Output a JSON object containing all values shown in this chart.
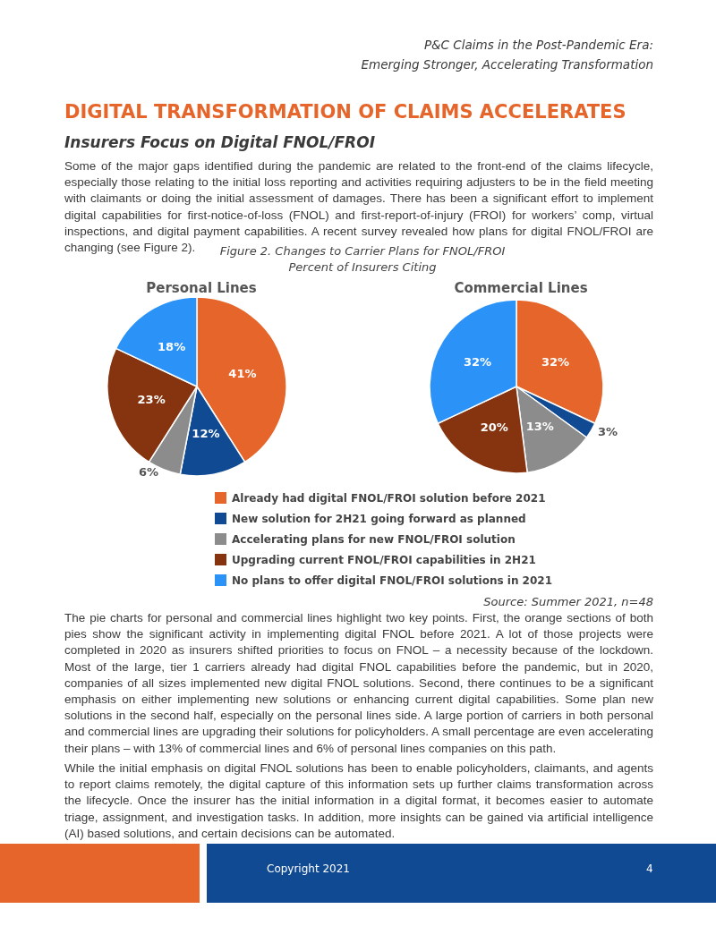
{
  "chart_data": [
    {
      "type": "pie",
      "title": "Figure 2. Changes to Carrier Plans for FNOL/FROI",
      "subtitle": "Percent of Insurers Citing",
      "categories": [
        "Already had digital FNOL/FROI solution before 2021",
        "New solution for 2H21 going forward as planned",
        "Accelerating plans for new FNOL/FROI solution",
        "Upgrading current FNOL/FROI capabilities in 2H21",
        "No plans to offer digital FNOL/FROI solutions in 2021"
      ],
      "colors": [
        "#e5652a",
        "#0f4a92",
        "#8c8c8c",
        "#86340f",
        "#2b93f8"
      ],
      "legend": "bottom",
      "series": [
        {
          "name": "Personal Lines",
          "values": [
            41,
            12,
            6,
            23,
            18
          ],
          "value_labels": [
            "41%",
            "12%",
            "6%",
            "23%",
            "18%"
          ]
        },
        {
          "name": "Commercial Lines",
          "values": [
            32,
            3,
            13,
            20,
            32
          ],
          "value_labels": [
            "32%",
            "3%",
            "13%",
            "20%",
            "32%"
          ]
        }
      ]
    },
    {
      "type": "other",
      "title": "DIGITAL TRANSFORMATION OF CLAIMS ACCELERATES",
      "subtitle": "Insurers Focus on Digital FNOL/FROI",
      "annotations": [
        "P&C Claims in the Post-Pandemic Era:",
        "Emerging Stronger, Accelerating Transformation",
        "Some of the major gaps identified during the pandemic are related to the front-end of the claims lifecycle, especially those relating to the initial loss reporting and activities requiring adjusters to be in the field meeting with claimants or doing the initial assessment of damages. There has been a significant effort to implement digital capabilities for first-notice-of-loss (FNOL) and first-report-of-injury (FROI) for workers’ comp, virtual inspections, and digital payment capabilities. A recent survey revealed how plans for digital FNOL/FROI are changing (see Figure 2).",
        "Source: Summer 2021, n=48",
        "The pie charts for personal and commercial lines highlight two key points. First, the orange sections of both pies show the significant activity in implementing digital FNOL before 2021. A lot of those projects were completed in 2020 as insurers shifted priorities to focus on FNOL – a necessity because of the lockdown. Most of the large, tier 1 carriers already had digital FNOL capabilities before the pandemic, but in 2020, companies of all sizes implemented new digital FNOL solutions. Second, there continues to be a significant emphasis on either implementing new solutions or enhancing current digital capabilities. Some plan new solutions in the second half, especially on the personal lines side. A large portion of carriers in both personal and commercial lines are upgrading their solutions for policyholders. A small percentage are even accelerating their plans – with 13% of commercial lines and 6% of personal lines companies on this path.",
        "While the initial emphasis on digital FNOL solutions has been to enable policyholders, claimants, and agents to report claims remotely, the digital capture of this information sets up further claims transformation across the lifecycle. Once the insurer has the initial information in a digital format, it becomes easier to automate triage, assignment, and investigation tasks. In addition, more insights can be gained via artificial intelligence (AI) based solutions, and certain decisions can be automated.",
        "Copyright 2021",
        "4"
      ]
    }
  ]
}
